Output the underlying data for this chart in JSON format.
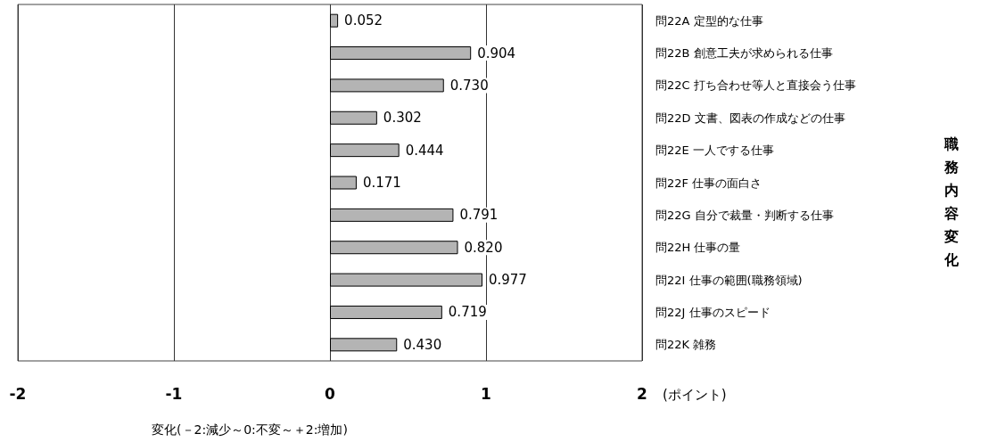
{
  "chart_data": {
    "type": "bar",
    "orientation": "horizontal",
    "categories": [
      "問22A 定型的な仕事",
      "問22B 創意工夫が求められる仕事",
      "問22C 打ち合わせ等人と直接会う仕事",
      "問22D 文書、図表の作成などの仕事",
      "問22E 一人でする仕事",
      "問22F 仕事の面白さ",
      "問22G 自分で裁量・判断する仕事",
      "問22H 仕事の量",
      "問22I 仕事の範囲(職務領域)",
      "問22J 仕事のスピード",
      "問22K 雑務"
    ],
    "values": [
      0.052,
      0.904,
      0.73,
      0.302,
      0.444,
      0.171,
      0.791,
      0.82,
      0.977,
      0.719,
      0.43
    ],
    "value_labels": [
      "0.052",
      "0.904",
      "0.730",
      "0.302",
      "0.444",
      "0.171",
      "0.791",
      "0.820",
      "0.977",
      "0.719",
      "0.430"
    ],
    "color": "#b4b4b4",
    "xlim": [
      -2,
      2
    ],
    "xticks": [
      -2,
      -1,
      0,
      1,
      2
    ],
    "xlabel": "変化(－2:減少～0:不変～＋2:増加)",
    "annotations": [
      "(ポイント)",
      "職務内容変化"
    ],
    "grid": "x"
  }
}
